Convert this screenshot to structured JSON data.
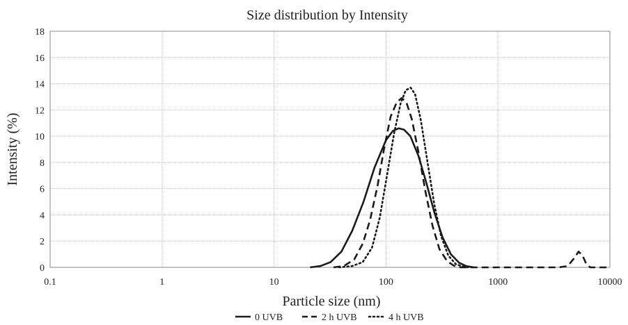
{
  "chart_data": {
    "type": "line",
    "title": "Size distribution by Intensity",
    "xlabel": "Particle size (nm)",
    "ylabel": "Intensity (%)",
    "x_scale": "log",
    "xlim": [
      0.1,
      10000
    ],
    "ylim": [
      0,
      18
    ],
    "x_ticks": [
      "0.1",
      "1",
      "10",
      "100",
      "1000",
      "10000"
    ],
    "y_ticks": [
      "0",
      "2",
      "4",
      "6",
      "8",
      "10",
      "12",
      "14",
      "16",
      "18"
    ],
    "grid": true,
    "legend_position": "bottom",
    "series": [
      {
        "name": "0 UVB",
        "style": "solid",
        "color": "#1a1a1a",
        "points": [
          [
            21,
            0
          ],
          [
            26,
            0.1
          ],
          [
            32,
            0.4
          ],
          [
            40,
            1.2
          ],
          [
            50,
            2.8
          ],
          [
            63,
            5.0
          ],
          [
            79,
            7.6
          ],
          [
            100,
            9.7
          ],
          [
            115,
            10.4
          ],
          [
            130,
            10.6
          ],
          [
            145,
            10.5
          ],
          [
            165,
            10.0
          ],
          [
            195,
            8.5
          ],
          [
            230,
            6.4
          ],
          [
            270,
            4.2
          ],
          [
            320,
            2.3
          ],
          [
            380,
            1.0
          ],
          [
            450,
            0.35
          ],
          [
            520,
            0.1
          ],
          [
            610,
            0
          ]
        ]
      },
      {
        "name": "2 h UVB",
        "style": "dashed",
        "color": "#1a1a1a",
        "points": [
          [
            34,
            0
          ],
          [
            42,
            0.1
          ],
          [
            52,
            0.6
          ],
          [
            62,
            1.8
          ],
          [
            72,
            3.6
          ],
          [
            84,
            6.2
          ],
          [
            96,
            9.0
          ],
          [
            110,
            11.5
          ],
          [
            125,
            12.6
          ],
          [
            138,
            12.9
          ],
          [
            152,
            12.6
          ],
          [
            170,
            11.3
          ],
          [
            195,
            8.8
          ],
          [
            225,
            5.8
          ],
          [
            260,
            3.2
          ],
          [
            300,
            1.4
          ],
          [
            350,
            0.5
          ],
          [
            400,
            0.15
          ],
          [
            460,
            0
          ],
          [
            3500,
            0
          ],
          [
            4200,
            0.1
          ],
          [
            4800,
            0.7
          ],
          [
            5250,
            1.2
          ],
          [
            5700,
            0.9
          ],
          [
            6200,
            0.2
          ],
          [
            6700,
            0
          ],
          [
            10000,
            0
          ]
        ]
      },
      {
        "name": "4 h UVB",
        "style": "dotted",
        "color": "#1a1a1a",
        "points": [
          [
            38,
            0
          ],
          [
            50,
            0.1
          ],
          [
            62,
            0.4
          ],
          [
            75,
            1.5
          ],
          [
            88,
            3.8
          ],
          [
            102,
            7.0
          ],
          [
            118,
            10.2
          ],
          [
            135,
            12.5
          ],
          [
            150,
            13.5
          ],
          [
            166,
            13.7
          ],
          [
            182,
            13.2
          ],
          [
            205,
            11.2
          ],
          [
            235,
            8.0
          ],
          [
            270,
            4.8
          ],
          [
            310,
            2.4
          ],
          [
            360,
            0.9
          ],
          [
            420,
            0.25
          ],
          [
            490,
            0.05
          ],
          [
            560,
            0
          ]
        ]
      }
    ]
  }
}
